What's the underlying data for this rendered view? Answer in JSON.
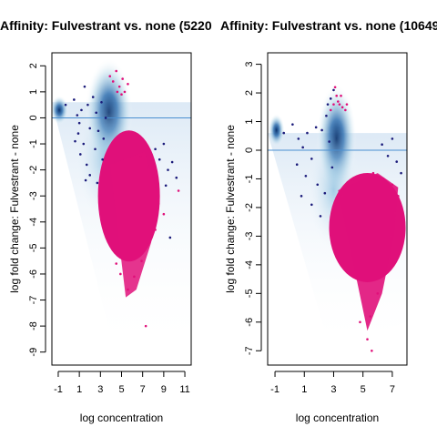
{
  "chart_data": [
    {
      "type": "scatter",
      "title": "Affinity: Fulvestrant vs. none (5220",
      "xlabel": "log concentration",
      "ylabel": "log fold change: Fulvestrant - none",
      "xlim": [
        -1.6,
        11.6
      ],
      "ylim": [
        -9.5,
        2.5
      ],
      "xticks": [
        -1,
        1,
        3,
        5,
        7,
        9,
        11
      ],
      "yticks": [
        2,
        1,
        0,
        -1,
        -2,
        -3,
        -4,
        -5,
        -6,
        -7,
        -8,
        -9
      ],
      "hline": 0,
      "background": "smoothed density of all sites (blue)",
      "series": [
        {
          "color": "#1a1a7a",
          "points": [
            [
              -0.3,
              0.5
            ],
            [
              0.5,
              0.7
            ],
            [
              0.8,
              0.1
            ],
            [
              1.0,
              -0.2
            ],
            [
              1.2,
              0.3
            ],
            [
              1.5,
              1.2
            ],
            [
              1.8,
              0.5
            ],
            [
              0.9,
              -0.6
            ],
            [
              1.4,
              -1.0
            ],
            [
              2.0,
              -0.4
            ],
            [
              2.3,
              0.8
            ],
            [
              2.6,
              0.2
            ],
            [
              1.1,
              -1.4
            ],
            [
              1.7,
              -1.8
            ],
            [
              2.5,
              -1.2
            ],
            [
              2.8,
              -0.5
            ],
            [
              3.1,
              0.6
            ],
            [
              3.3,
              -0.8
            ],
            [
              3.5,
              0.0
            ],
            [
              3.2,
              -1.6
            ],
            [
              2.0,
              -2.2
            ],
            [
              2.7,
              -2.5
            ],
            [
              1.6,
              -2.4
            ],
            [
              0.6,
              -0.9
            ],
            [
              8.2,
              -1.2
            ],
            [
              8.6,
              -1.6
            ],
            [
              9.0,
              -1.0
            ],
            [
              9.4,
              -2.0
            ],
            [
              9.8,
              -1.7
            ],
            [
              10.2,
              -2.3
            ],
            [
              9.2,
              -2.6
            ],
            [
              9.6,
              -4.6
            ]
          ]
        },
        {
          "color": "#e0107a",
          "points": [
            [
              3.9,
              1.6
            ],
            [
              4.2,
              1.4
            ],
            [
              4.5,
              1.8
            ],
            [
              4.8,
              1.2
            ],
            [
              5.1,
              1.5
            ],
            [
              5.3,
              1.0
            ],
            [
              5.6,
              1.3
            ],
            [
              4.6,
              1.0
            ],
            [
              5.0,
              0.9
            ],
            [
              7.3,
              -8.0
            ],
            [
              4.4,
              -1.7
            ],
            [
              5.2,
              -0.9
            ],
            [
              6.0,
              -1.1
            ],
            [
              6.8,
              -1.5
            ],
            [
              7.5,
              -1.9
            ],
            [
              8.0,
              -2.3
            ],
            [
              8.5,
              -3.3
            ],
            [
              10.4,
              -2.8
            ],
            [
              9.0,
              -3.7
            ],
            [
              4.5,
              -5.6
            ],
            [
              4.9,
              -6.0
            ],
            [
              5.6,
              -6.6
            ],
            [
              6.2,
              -6.1
            ],
            [
              6.9,
              -5.5
            ],
            [
              7.4,
              -4.8
            ],
            [
              8.2,
              -4.3
            ]
          ]
        }
      ]
    },
    {
      "type": "scatter",
      "title": "Affinity: Fulvestrant vs. none (10649",
      "xlabel": "log concentration",
      "ylabel": "log fold change: Fulvestrant - none",
      "xlim": [
        -1.5,
        8.0
      ],
      "ylim": [
        -7.5,
        3.4
      ],
      "xticks": [
        -1,
        1,
        3,
        5,
        7
      ],
      "yticks": [
        3,
        2,
        1,
        0,
        -1,
        -2,
        -3,
        -4,
        -5,
        -6,
        -7
      ],
      "hline": 0,
      "background": "smoothed density of all sites (blue)",
      "series": [
        {
          "color": "#1a1a7a",
          "points": [
            [
              -0.4,
              0.6
            ],
            [
              0.2,
              0.9
            ],
            [
              0.6,
              0.4
            ],
            [
              0.9,
              0.1
            ],
            [
              1.2,
              0.6
            ],
            [
              1.5,
              -0.3
            ],
            [
              1.8,
              0.8
            ],
            [
              0.5,
              -0.5
            ],
            [
              1.1,
              -0.9
            ],
            [
              1.9,
              -1.2
            ],
            [
              2.2,
              0.7
            ],
            [
              2.5,
              1.2
            ],
            [
              2.7,
              0.3
            ],
            [
              2.9,
              -0.6
            ],
            [
              2.4,
              -1.5
            ],
            [
              1.5,
              -1.9
            ],
            [
              2.1,
              -2.3
            ],
            [
              0.8,
              -1.6
            ],
            [
              2.6,
              1.6
            ],
            [
              2.8,
              1.8
            ],
            [
              3.0,
              2.1
            ],
            [
              6.3,
              0.2
            ],
            [
              6.7,
              -0.2
            ],
            [
              7.0,
              0.4
            ],
            [
              7.3,
              -0.4
            ],
            [
              7.6,
              -0.8
            ]
          ]
        },
        {
          "color": "#e0107a",
          "points": [
            [
              3.1,
              2.2
            ],
            [
              3.3,
              1.7
            ],
            [
              3.5,
              1.9
            ],
            [
              3.0,
              1.6
            ],
            [
              2.8,
              1.4
            ],
            [
              3.6,
              1.5
            ],
            [
              3.2,
              1.9
            ],
            [
              3.4,
              1.6
            ],
            [
              3.8,
              1.4
            ],
            [
              3.9,
              1.6
            ],
            [
              3.6,
              -1.6
            ],
            [
              4.3,
              -1.1
            ],
            [
              5.0,
              -0.9
            ],
            [
              5.7,
              -0.8
            ],
            [
              6.4,
              -1.0
            ],
            [
              7.0,
              -1.2
            ],
            [
              7.4,
              -1.6
            ],
            [
              7.2,
              -2.2
            ],
            [
              6.9,
              -3.0
            ],
            [
              6.5,
              -4.3
            ],
            [
              6.0,
              -5.0
            ],
            [
              5.5,
              -5.8
            ],
            [
              5.3,
              -6.6
            ],
            [
              5.6,
              -7.0
            ],
            [
              4.8,
              -6.0
            ],
            [
              6.8,
              -3.8
            ]
          ]
        }
      ]
    }
  ]
}
